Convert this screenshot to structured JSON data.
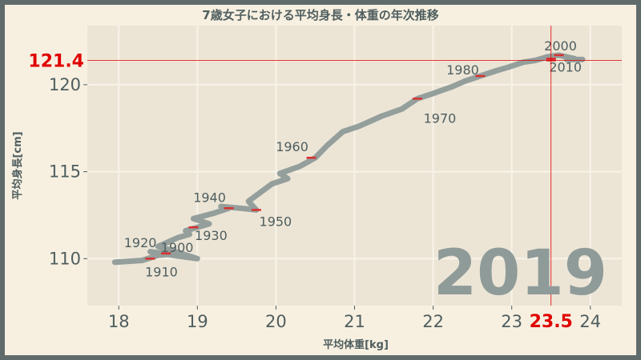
{
  "chart_data": {
    "type": "line",
    "title": "7歳女子における平均身長・体重の年次推移",
    "xlabel": "平均体重[kg]",
    "ylabel": "平均身長[cm]",
    "xlim": [
      17.6,
      24.4
    ],
    "ylim": [
      107.3,
      123.4
    ],
    "xticks": [
      18,
      19,
      20,
      21,
      22,
      23,
      24
    ],
    "yticks": [
      110,
      115,
      120
    ],
    "grid": true,
    "year_stamp": "2019",
    "current": {
      "x": 23.5,
      "y": 121.4,
      "x_label": "23.5",
      "y_label": "121.4"
    },
    "series": [
      {
        "x": [
          17.95,
          18.3,
          18.5,
          18.65,
          18.4,
          18.55,
          18.75,
          19.0,
          18.65,
          18.5,
          18.75,
          18.9,
          18.85,
          19.0,
          19.15,
          18.95,
          19.2,
          19.4,
          19.3,
          19.55,
          19.75,
          19.65,
          19.8,
          19.95,
          20.15,
          20.05,
          20.3,
          20.5,
          20.65,
          20.85,
          21.05,
          21.35,
          21.6,
          21.8,
          22.0,
          22.25,
          22.4,
          22.6,
          22.8,
          22.95,
          23.15,
          23.3,
          23.45,
          23.6,
          23.8,
          23.7,
          23.9
        ],
        "y": [
          109.8,
          109.9,
          110.2,
          110.25,
          110.4,
          110.3,
          110.15,
          110.0,
          110.5,
          110.7,
          111.2,
          111.4,
          111.6,
          111.8,
          112.0,
          112.3,
          112.6,
          112.9,
          113.0,
          112.9,
          112.8,
          113.3,
          113.8,
          114.3,
          114.6,
          114.9,
          115.3,
          115.8,
          116.5,
          117.3,
          117.6,
          118.2,
          118.6,
          119.2,
          119.5,
          119.9,
          120.2,
          120.5,
          120.8,
          121.0,
          121.3,
          121.4,
          121.6,
          121.7,
          121.5,
          121.45,
          121.45
        ]
      }
    ],
    "markers": [
      {
        "year": "1900",
        "x": 18.6,
        "y": 110.3
      },
      {
        "year": "1910",
        "x": 18.4,
        "y": 110.0
      },
      {
        "year": "1920",
        "x": 18.6,
        "y": 110.3
      },
      {
        "year": "1930",
        "x": 18.95,
        "y": 111.8
      },
      {
        "year": "1940",
        "x": 19.4,
        "y": 112.9
      },
      {
        "year": "1950",
        "x": 19.75,
        "y": 112.8
      },
      {
        "year": "1960",
        "x": 20.45,
        "y": 115.8
      },
      {
        "year": "1970",
        "x": 21.8,
        "y": 119.2
      },
      {
        "year": "1980",
        "x": 22.6,
        "y": 120.5
      },
      {
        "year": "2000",
        "x": 23.6,
        "y": 121.7
      },
      {
        "year": "2010",
        "x": 23.5,
        "y": 121.5
      },
      {
        "year": "2019",
        "x": 23.5,
        "y": 121.4
      }
    ],
    "colors": {
      "background": "#f7f0e1",
      "plot_area": "#ece5d6",
      "path": "#8f9b99",
      "marker": "#d93030",
      "highlight": "#e00000",
      "text": "#4f5e5f",
      "stamp": "#8f9b99",
      "frame": "#5f6b6b"
    }
  }
}
